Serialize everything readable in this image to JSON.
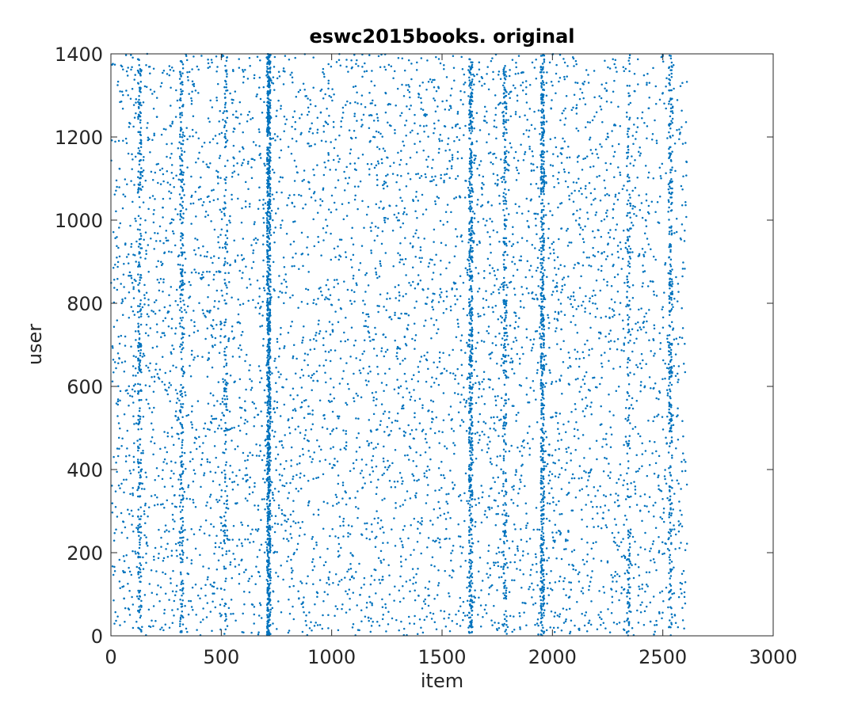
{
  "chart_data": {
    "type": "scatter",
    "title": "eswc2015books. original",
    "xlabel": "item",
    "ylabel": "user",
    "xlim": [
      0,
      3000
    ],
    "ylim": [
      0,
      1400
    ],
    "xticks": [
      0,
      500,
      1000,
      1500,
      2000,
      2500,
      3000
    ],
    "yticks": [
      0,
      200,
      400,
      600,
      800,
      1000,
      1200,
      1400
    ],
    "grid": false,
    "box": true,
    "marker_color": "#0072BD",
    "x_data_extent": [
      0,
      2610
    ],
    "y_data_extent": [
      0,
      1400
    ],
    "dense_item_columns": [
      {
        "item": 130,
        "density": "medium"
      },
      {
        "item": 320,
        "density": "medium"
      },
      {
        "item": 520,
        "density": "low"
      },
      {
        "item": 715,
        "density": "very high"
      },
      {
        "item": 1630,
        "density": "high"
      },
      {
        "item": 1785,
        "density": "medium"
      },
      {
        "item": 1955,
        "density": "high"
      },
      {
        "item": 2345,
        "density": "low"
      },
      {
        "item": 2535,
        "density": "medium"
      }
    ],
    "approx_point_count": 9000
  }
}
